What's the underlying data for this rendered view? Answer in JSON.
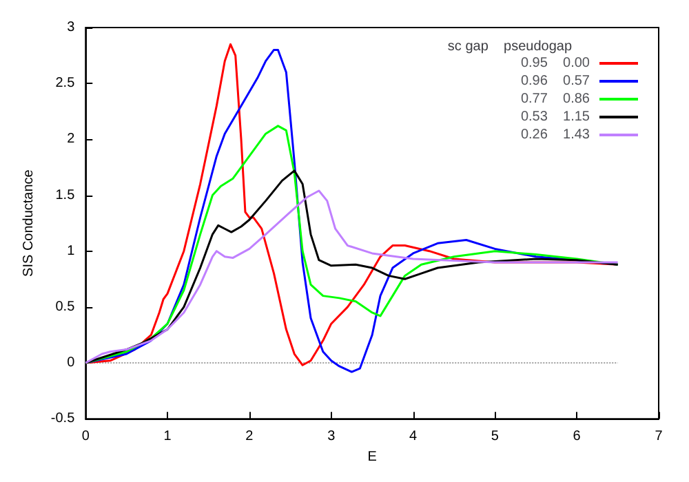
{
  "chart_data": {
    "type": "line",
    "xlabel": "E",
    "ylabel": "SIS Conductance",
    "legend_title": "sc gap    pseudogap",
    "xlim": [
      0,
      7
    ],
    "xticks": [
      0,
      1,
      2,
      3,
      4,
      5,
      6,
      7
    ],
    "ylim": [
      -0.5,
      3
    ],
    "yticks": [
      -0.5,
      0,
      0.5,
      1,
      1.5,
      2,
      2.5,
      3
    ],
    "grid": false,
    "legend": "top right",
    "marker": "none",
    "line_style": "solid",
    "series": [
      {
        "color": "#a0a0a0",
        "line_style": "dotted",
        "x": [
          0,
          6.5
        ],
        "values": [
          0,
          0
        ]
      },
      {
        "name": "0.95    0.00",
        "color": "#ff0000",
        "x": [
          0,
          0.3,
          0.6,
          0.8,
          0.9,
          0.95,
          1.0,
          1.2,
          1.4,
          1.6,
          1.7,
          1.77,
          1.83,
          1.9,
          1.95,
          2.0,
          2.05,
          2.15,
          2.3,
          2.45,
          2.55,
          2.65,
          2.75,
          2.9,
          3.0,
          3.2,
          3.4,
          3.6,
          3.75,
          3.9,
          4.2,
          4.5,
          5,
          6,
          6.5
        ],
        "values": [
          0,
          0.02,
          0.12,
          0.25,
          0.45,
          0.57,
          0.62,
          1.0,
          1.6,
          2.3,
          2.7,
          2.85,
          2.75,
          2.0,
          1.35,
          1.3,
          1.3,
          1.2,
          0.8,
          0.3,
          0.08,
          -0.02,
          0.02,
          0.2,
          0.35,
          0.5,
          0.7,
          0.95,
          1.05,
          1.05,
          1.0,
          0.93,
          0.9,
          0.9,
          0.88
        ]
      },
      {
        "name": "0.96    0.57",
        "color": "#0000ff",
        "x": [
          0,
          0.5,
          0.8,
          1,
          1.2,
          1.4,
          1.6,
          1.7,
          1.9,
          2.1,
          2.2,
          2.3,
          2.35,
          2.45,
          2.55,
          2.65,
          2.75,
          2.9,
          3.0,
          3.1,
          3.25,
          3.35,
          3.5,
          3.6,
          3.75,
          4.0,
          4.3,
          4.65,
          5.0,
          5.5,
          6.0,
          6.5
        ],
        "values": [
          0,
          0.08,
          0.2,
          0.35,
          0.7,
          1.3,
          1.85,
          2.05,
          2.3,
          2.55,
          2.7,
          2.8,
          2.8,
          2.6,
          1.8,
          0.9,
          0.4,
          0.1,
          0.02,
          -0.03,
          -0.08,
          -0.05,
          0.25,
          0.6,
          0.85,
          0.98,
          1.07,
          1.1,
          1.02,
          0.95,
          0.92,
          0.88
        ]
      },
      {
        "name": "0.77    0.86",
        "color": "#00ff00",
        "x": [
          0,
          0.5,
          0.8,
          1,
          1.2,
          1.4,
          1.55,
          1.65,
          1.8,
          2.0,
          2.2,
          2.35,
          2.45,
          2.55,
          2.65,
          2.75,
          2.9,
          3.1,
          3.3,
          3.5,
          3.6,
          3.75,
          3.9,
          4.1,
          4.5,
          5.0,
          5.5,
          6.0,
          6.5
        ],
        "values": [
          0,
          0.1,
          0.22,
          0.35,
          0.65,
          1.15,
          1.5,
          1.58,
          1.65,
          1.85,
          2.05,
          2.12,
          2.08,
          1.7,
          1.0,
          0.7,
          0.6,
          0.58,
          0.55,
          0.45,
          0.42,
          0.6,
          0.78,
          0.88,
          0.95,
          1.0,
          0.97,
          0.93,
          0.88
        ]
      },
      {
        "name": "0.53    1.15",
        "color": "#000000",
        "x": [
          0,
          0.5,
          0.7,
          1,
          1.2,
          1.4,
          1.55,
          1.62,
          1.7,
          1.78,
          1.9,
          2.0,
          2.2,
          2.4,
          2.55,
          2.65,
          2.75,
          2.85,
          3.0,
          3.3,
          3.5,
          3.7,
          3.9,
          4.1,
          4.3,
          4.8,
          5.5,
          6.0,
          6.5
        ],
        "values": [
          0,
          0.12,
          0.18,
          0.3,
          0.5,
          0.85,
          1.15,
          1.23,
          1.2,
          1.17,
          1.22,
          1.28,
          1.45,
          1.63,
          1.72,
          1.6,
          1.15,
          0.92,
          0.87,
          0.88,
          0.85,
          0.78,
          0.75,
          0.8,
          0.85,
          0.9,
          0.93,
          0.92,
          0.88
        ]
      },
      {
        "name": "0.26    1.43",
        "color": "#c080ff",
        "x": [
          0,
          0.2,
          0.3,
          0.5,
          0.8,
          1,
          1.2,
          1.4,
          1.55,
          1.6,
          1.7,
          1.8,
          2.0,
          2.2,
          2.5,
          2.7,
          2.85,
          2.95,
          3.05,
          3.2,
          3.5,
          4.0,
          5.0,
          6.0,
          6.5
        ],
        "values": [
          0,
          0.08,
          0.1,
          0.12,
          0.2,
          0.3,
          0.45,
          0.7,
          0.95,
          1.0,
          0.95,
          0.94,
          1.02,
          1.15,
          1.35,
          1.48,
          1.54,
          1.45,
          1.2,
          1.05,
          0.98,
          0.93,
          0.9,
          0.9,
          0.9
        ]
      }
    ]
  }
}
